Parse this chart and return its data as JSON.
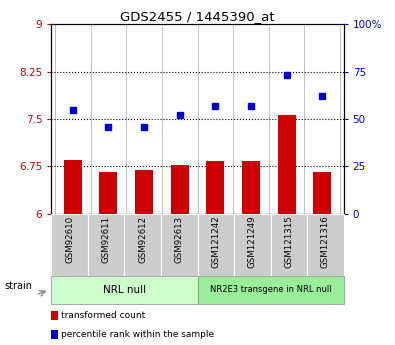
{
  "title": "GDS2455 / 1445390_at",
  "samples": [
    "GSM92610",
    "GSM92611",
    "GSM92612",
    "GSM92613",
    "GSM121242",
    "GSM121249",
    "GSM121315",
    "GSM121316"
  ],
  "bar_values": [
    6.85,
    6.67,
    6.7,
    6.78,
    6.84,
    6.83,
    7.56,
    6.67
  ],
  "dot_values": [
    55,
    46,
    46,
    52,
    57,
    57,
    73,
    62
  ],
  "bar_color": "#cc0000",
  "dot_color": "#0000cc",
  "ylim_left": [
    6,
    9
  ],
  "ylim_right": [
    0,
    100
  ],
  "yticks_left": [
    6,
    6.75,
    7.5,
    8.25,
    9
  ],
  "yticks_right": [
    0,
    25,
    50,
    75,
    100
  ],
  "ytick_labels_left": [
    "6",
    "6.75",
    "7.5",
    "8.25",
    "9"
  ],
  "ytick_labels_right": [
    "0",
    "25",
    "50",
    "75",
    "100%"
  ],
  "hlines": [
    6.75,
    7.5,
    8.25
  ],
  "group1_label": "NRL null",
  "group2_label": "NR2E3 transgene in NRL null",
  "group1_indices": [
    0,
    1,
    2,
    3
  ],
  "group2_indices": [
    4,
    5,
    6,
    7
  ],
  "group1_color": "#ccffcc",
  "group2_color": "#99ee99",
  "strain_label": "strain",
  "legend_bar": "transformed count",
  "legend_dot": "percentile rank within the sample",
  "tick_color_left": "#cc0000",
  "tick_color_right": "#0000cc",
  "sample_box_color": "#cccccc",
  "bar_width": 0.5
}
